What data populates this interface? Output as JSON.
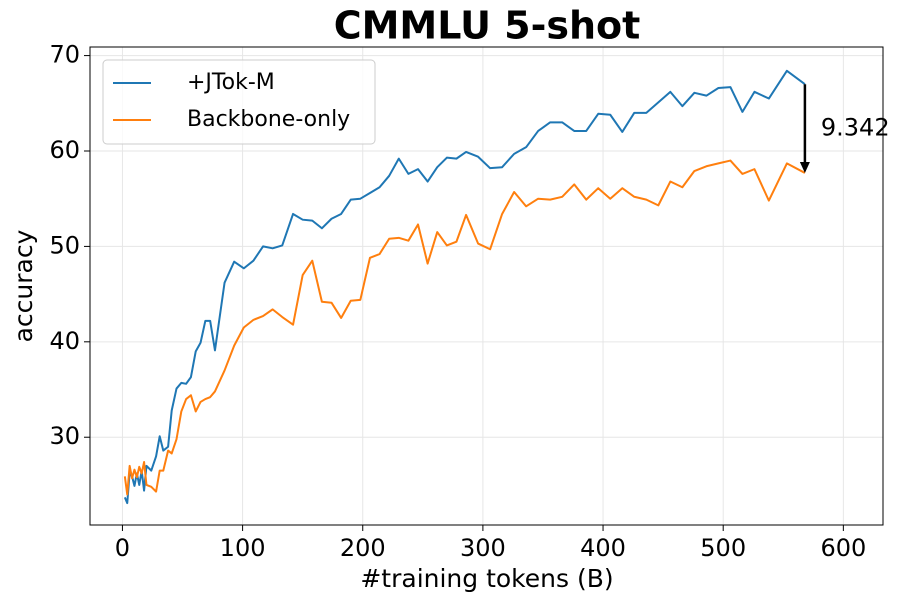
{
  "chart_data": {
    "type": "line",
    "title": "CMMLU 5-shot",
    "x_label": "#training tokens (B)",
    "y_label": "accuracy",
    "x": [
      2,
      4,
      6,
      8,
      10,
      12,
      14,
      16,
      18,
      20,
      24,
      28,
      31,
      34,
      38,
      41,
      45,
      49,
      53,
      57,
      61,
      65,
      69,
      73,
      77,
      85,
      93,
      101,
      109,
      117,
      125,
      133,
      142,
      150,
      158,
      166,
      174,
      182,
      190,
      198,
      206,
      214,
      222,
      230,
      238,
      246,
      254,
      262,
      270,
      278,
      286,
      296,
      306,
      316,
      326,
      336,
      346,
      356,
      366,
      376,
      386,
      396,
      406,
      416,
      426,
      436,
      446,
      456,
      466,
      476,
      486,
      496,
      506,
      516,
      526,
      538,
      553,
      568
    ],
    "series": [
      {
        "name": "+JTok-M",
        "color": "#1f77b4",
        "values": [
          23.7,
          23.1,
          26.3,
          25.9,
          24.9,
          26.2,
          25.0,
          26.5,
          24.4,
          27.0,
          26.5,
          28.0,
          30.1,
          28.6,
          29.0,
          32.8,
          35.1,
          35.7,
          35.6,
          36.3,
          39.0,
          39.9,
          42.2,
          42.2,
          39.1,
          46.2,
          48.4,
          47.7,
          48.5,
          50.0,
          49.8,
          50.1,
          53.4,
          52.8,
          52.7,
          51.9,
          52.9,
          53.4,
          54.9,
          55.0,
          55.6,
          56.2,
          57.4,
          59.2,
          57.6,
          58.1,
          56.8,
          58.3,
          59.3,
          59.2,
          59.9,
          59.4,
          58.2,
          58.3,
          59.7,
          60.4,
          62.1,
          63.0,
          63.0,
          62.1,
          62.1,
          63.9,
          63.8,
          62.0,
          64.0,
          64.0,
          65.1,
          66.2,
          64.7,
          66.1,
          65.8,
          66.6,
          66.7,
          64.1,
          66.2,
          65.5,
          68.4,
          67.0
        ]
      },
      {
        "name": "Backbone-only",
        "color": "#ff7f0e",
        "values": [
          25.9,
          24.0,
          27.0,
          25.7,
          26.6,
          25.8,
          26.9,
          26.2,
          27.4,
          25.0,
          24.8,
          24.3,
          26.5,
          26.5,
          28.6,
          28.3,
          29.8,
          32.7,
          34.0,
          34.4,
          32.7,
          33.7,
          34.0,
          34.2,
          34.8,
          37.0,
          39.6,
          41.5,
          42.3,
          42.7,
          43.4,
          42.6,
          41.8,
          47.0,
          48.5,
          44.2,
          44.1,
          42.5,
          44.3,
          44.4,
          48.8,
          49.2,
          50.8,
          50.9,
          50.6,
          52.3,
          48.2,
          51.5,
          50.1,
          50.5,
          53.3,
          50.3,
          49.7,
          53.4,
          55.7,
          54.2,
          55.0,
          54.9,
          55.2,
          56.5,
          54.9,
          56.1,
          55.0,
          56.1,
          55.2,
          54.9,
          54.3,
          56.8,
          56.2,
          57.9,
          58.4,
          58.7,
          59.0,
          57.6,
          58.1,
          54.8,
          58.7,
          57.7
        ]
      }
    ],
    "annotation": "9.342",
    "xlim": [
      -27,
      633
    ],
    "ylim": [
      20.8,
      70.9
    ],
    "xticks": [
      0,
      100,
      200,
      300,
      400,
      500,
      600
    ],
    "yticks": [
      30,
      40,
      50,
      60,
      70
    ],
    "grid": true,
    "legend": "upper left"
  }
}
